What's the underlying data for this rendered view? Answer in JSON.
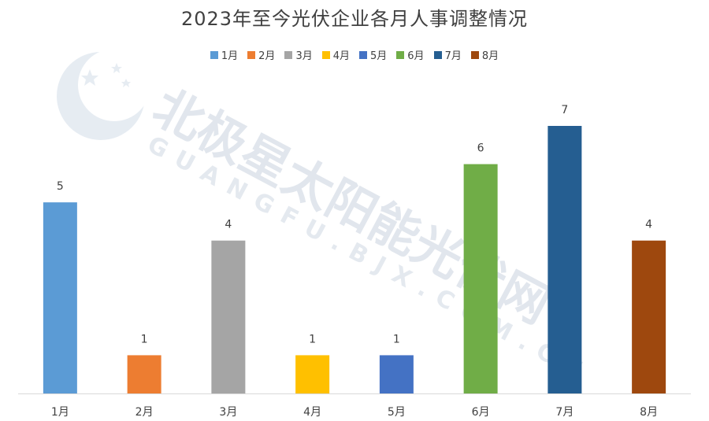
{
  "chart_data": {
    "type": "bar",
    "title": "2023年至今光伏企业各月人事调整情况",
    "categories": [
      "1月",
      "2月",
      "3月",
      "4月",
      "5月",
      "6月",
      "7月",
      "8月"
    ],
    "values": [
      5,
      1,
      4,
      1,
      1,
      6,
      7,
      4
    ],
    "colors": [
      "#5b9bd5",
      "#ed7d31",
      "#a5a5a5",
      "#ffc000",
      "#4472c4",
      "#70ad47",
      "#255e91",
      "#9e480e"
    ],
    "legend": [
      "1月",
      "2月",
      "3月",
      "4月",
      "5月",
      "6月",
      "7月",
      "8月"
    ],
    "legend_position": "top",
    "ylim": [
      0,
      7
    ],
    "grid": false,
    "xlabel": "",
    "ylabel": ""
  },
  "watermark": {
    "text": "北极星太阳能光伏网",
    "url": "GUANGFU.BJX.COM.CN",
    "logo": "star-logo-icon"
  }
}
